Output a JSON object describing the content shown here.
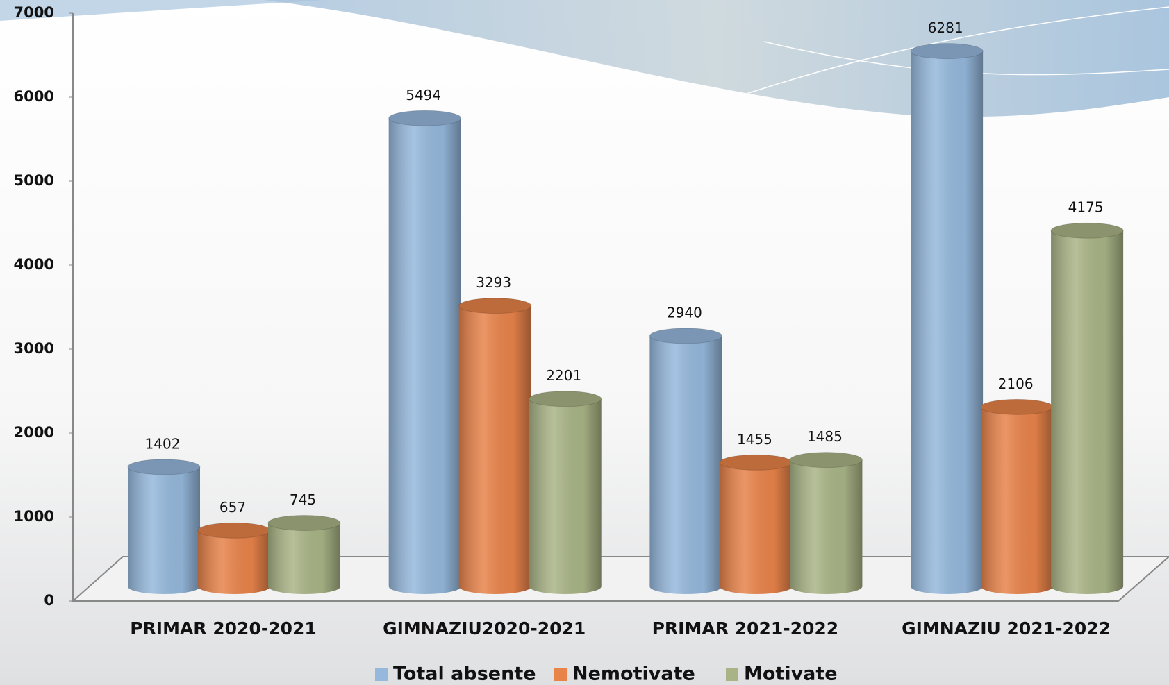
{
  "chart_data": {
    "type": "bar",
    "categories": [
      "PRIMAR 2020-2021",
      "GIMNAZIU2020-2021",
      "PRIMAR 2021-2022",
      "GIMNAZIU 2021-2022"
    ],
    "series": [
      {
        "name": "Total  absente",
        "color": "#95b8dc",
        "values": [
          1402,
          5494,
          2940,
          6281
        ]
      },
      {
        "name": "Nemotivate",
        "color": "#e8834a",
        "values": [
          657,
          3293,
          1455,
          2106
        ]
      },
      {
        "name": "Motivate",
        "color": "#a9b486",
        "values": [
          745,
          2201,
          1485,
          4175
        ]
      }
    ],
    "ylim": [
      0,
      7000
    ],
    "yticks": [
      0,
      1000,
      2000,
      3000,
      4000,
      5000,
      6000,
      7000
    ],
    "legend": "bottom"
  }
}
